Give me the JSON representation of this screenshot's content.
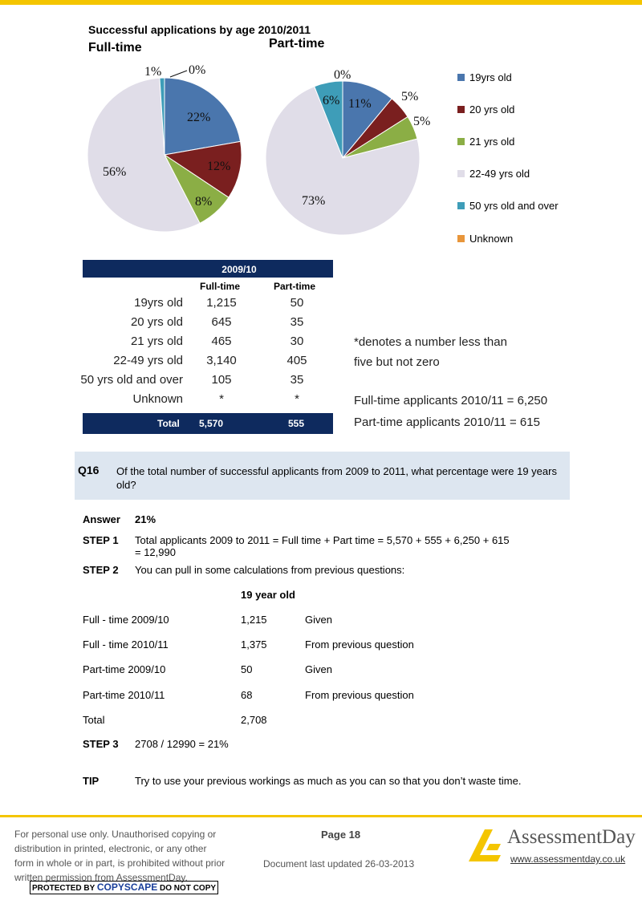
{
  "chart_title": "Successful applications by age  2010/2011",
  "chart_data": [
    {
      "type": "pie",
      "subtitle": "Full-time",
      "categories": [
        "19yrs old",
        "20 yrs old",
        "21 yrs old",
        "22-49 yrs old",
        "50 yrs old and over",
        "Unknown"
      ],
      "values": [
        22,
        12,
        8,
        56,
        1,
        0
      ],
      "labels": [
        "22%",
        "12%",
        "8%",
        "56%",
        "1%",
        "0%"
      ],
      "legend_position": "right"
    },
    {
      "type": "pie",
      "subtitle": "Part-time",
      "categories": [
        "19yrs old",
        "20 yrs old",
        "21 yrs old",
        "22-49 yrs old",
        "50 yrs old and over",
        "Unknown"
      ],
      "values": [
        11,
        5,
        5,
        73,
        6,
        0
      ],
      "labels": [
        "11%",
        "5%",
        "5%",
        "73%",
        "6%",
        "0%"
      ],
      "legend_position": "right"
    }
  ],
  "colors": [
    "#4a76ad",
    "#7a1f1f",
    "#8bae45",
    "#e0dde8",
    "#3e9db8",
    "#e8963b"
  ],
  "legend": [
    "19yrs old",
    "20 yrs old",
    "21 yrs old",
    "22-49 yrs old",
    "50 yrs old and over",
    "Unknown"
  ],
  "table": {
    "title": "2009/10",
    "col_full": "Full-time",
    "col_part": "Part-time",
    "rows": [
      {
        "label": "19yrs old",
        "full": "1,215",
        "part": "50"
      },
      {
        "label": "20 yrs old",
        "full": "645",
        "part": "35"
      },
      {
        "label": "21 yrs old",
        "full": "465",
        "part": "30"
      },
      {
        "label": "22-49 yrs old",
        "full": "3,140",
        "part": "405"
      },
      {
        "label": "50 yrs old and over",
        "full": "105",
        "part": "35"
      },
      {
        "label": "Unknown",
        "full": "*",
        "part": "*"
      }
    ],
    "total_label": "Total",
    "total_full": "5,570",
    "total_part": "555"
  },
  "notes": {
    "asterisk1": "*denotes a number less than",
    "asterisk2": "five but not zero",
    "ft_2011": "Full-time applicants 2010/11 = 6,250",
    "pt_2011": "Part-time applicants 2010/11 = 615"
  },
  "question": {
    "number": "Q16",
    "text": "Of the total number of successful applicants from 2009 to 2011, what percentage were 19 years old?"
  },
  "answer": {
    "label": "Answer",
    "value": "21%",
    "step1_label": "STEP 1",
    "step1_line1": "Total applicants 2009 to 2011 = Full time + Part time = 5,570 + 555 + 6,250 + 615",
    "step1_line2": "= 12,990",
    "step2_label": "STEP 2",
    "step2_text": "You can pull in some calculations from previous questions:",
    "calc_header": "19 year old",
    "calc_rows": [
      {
        "label": "Full - time 2009/10",
        "value": "1,215",
        "note": "Given"
      },
      {
        "label": "Full - time 2010/11",
        "value": "1,375",
        "note": "From previous question"
      },
      {
        "label": "Part-time 2009/10",
        "value": "50",
        "note": "Given"
      },
      {
        "label": "Part-time 2010/11",
        "value": "68",
        "note": "From previous question"
      },
      {
        "label": "Total",
        "value": "2,708",
        "note": ""
      }
    ],
    "step3_label": "STEP 3",
    "step3_text": "2708 / 12990 = 21%",
    "tip_label": "TIP",
    "tip_text": "Try to use your previous workings as much as you can so that you don’t waste time."
  },
  "footer": {
    "disclaimer": "For personal use only. Unauthorised copying or distribution in printed, electronic, or any other form in whole or in part, is prohibited without prior written permission from AssessmentDay.",
    "copyscape_pre": "PROTECTED BY",
    "copyscape_brand": "COPYSCAPE",
    "copyscape_post": "DO NOT COPY",
    "page": "Page 18",
    "updated": "Document last updated 26-03-2013",
    "brand": "AssessmentDay",
    "url": "www.assessmentday.co.uk"
  }
}
